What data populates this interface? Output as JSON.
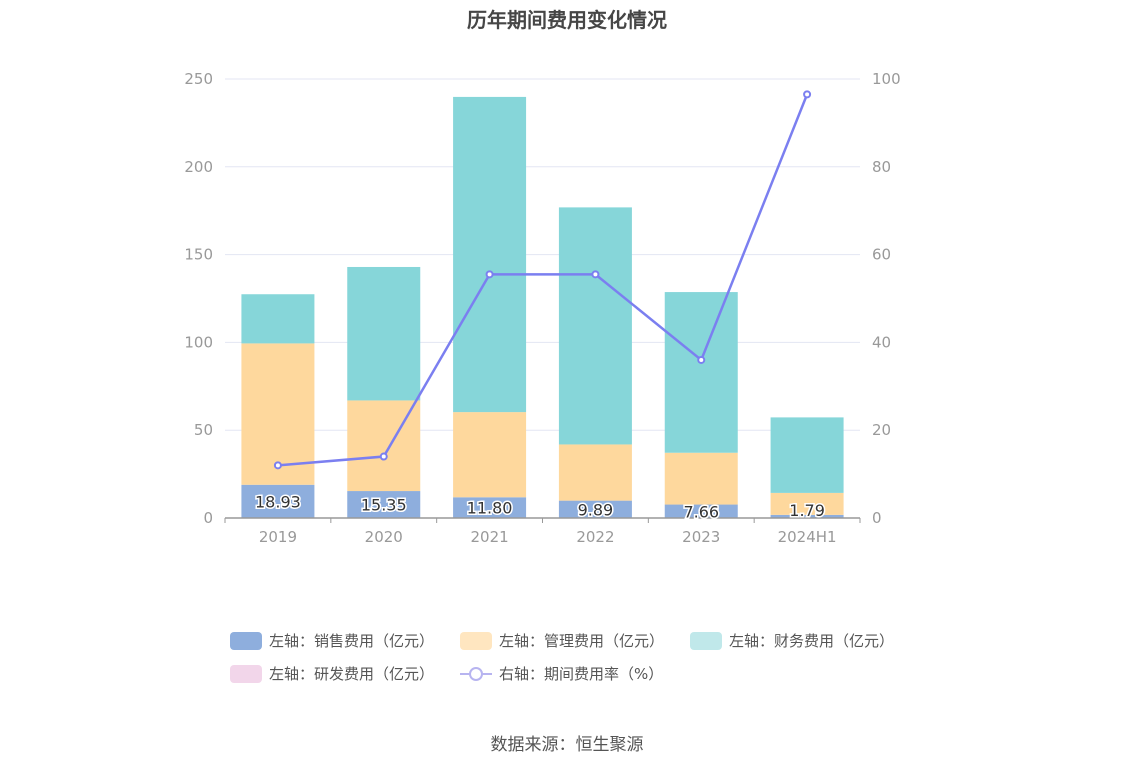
{
  "chart_data": {
    "type": "bar",
    "title": "历年期间费用变化情况",
    "categories": [
      "2019",
      "2020",
      "2021",
      "2022",
      "2023",
      "2024H1"
    ],
    "y_left": {
      "ylim": [
        0,
        250
      ],
      "ticks": [
        "0",
        "50",
        "100",
        "150",
        "200",
        "250"
      ]
    },
    "y_right": {
      "ylim": [
        0,
        100
      ],
      "ticks": [
        "0",
        "20",
        "40",
        "60",
        "80",
        "100"
      ]
    },
    "grid": true,
    "legend_position": "bottom",
    "series": [
      {
        "name": "左轴：销售费用（亿元）",
        "axis": "left",
        "kind": "bar",
        "color": "#8eaedd",
        "values": [
          18.93,
          15.35,
          11.8,
          9.89,
          7.66,
          1.79
        ],
        "labels": [
          "18.93",
          "15.35",
          "11.80",
          "9.89",
          "7.66",
          "1.79"
        ]
      },
      {
        "name": "左轴：管理费用（亿元）",
        "axis": "left",
        "kind": "bar",
        "color": "#fed89d",
        "values": [
          80.5,
          51.6,
          48.5,
          32.0,
          29.5,
          12.5
        ]
      },
      {
        "name": "左轴：财务费用（亿元）",
        "axis": "left",
        "kind": "bar",
        "color": "#86d6d9",
        "values": [
          28.0,
          76.0,
          179.5,
          135.0,
          91.5,
          43.0
        ]
      },
      {
        "name": "左轴：研发费用（亿元）",
        "axis": "left",
        "kind": "bar",
        "color": "#f2d6ea",
        "values": [
          0,
          0,
          0,
          0,
          0,
          0
        ]
      },
      {
        "name": "右轴：期间费用率（%）",
        "axis": "right",
        "kind": "line",
        "color": "#7b7ff0",
        "values": [
          12.0,
          14.0,
          55.5,
          55.5,
          36.0,
          96.5
        ]
      }
    ],
    "legend_colors": [
      "#8eaedd",
      "#ffe6c0",
      "#c0e8ea",
      "#f2d6ea",
      "#b7b4f0"
    ]
  },
  "source": "数据来源：恒生聚源"
}
